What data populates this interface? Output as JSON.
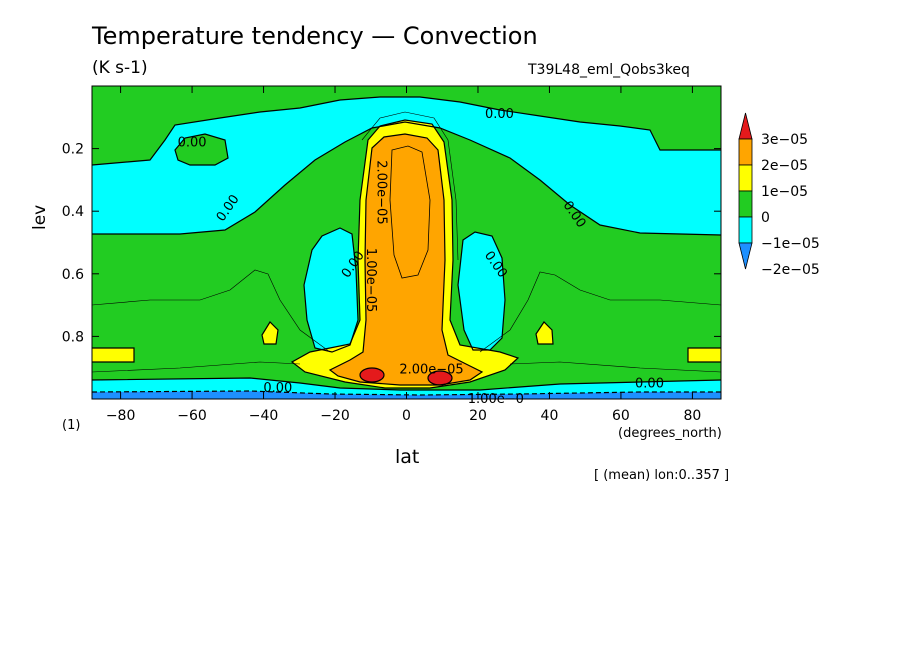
{
  "chart_data": {
    "type": "contour",
    "title": "Temperature tendency — Convection",
    "units": "(K s-1)",
    "run_label": "T39L48_eml_Qobs3keq",
    "xlabel": "lat",
    "ylabel": "lev",
    "x_units": "(degrees_north)",
    "panel_label": "(1)",
    "subtitle": "[ (mean) lon:0..357 ]",
    "xlim": [
      -88,
      88
    ],
    "ylim": [
      1.0,
      0.0
    ],
    "x_ticks": [
      -80,
      -60,
      -40,
      -20,
      0,
      20,
      40,
      60,
      80
    ],
    "x_tick_labels": [
      "−80",
      "−60",
      "−40",
      "−20",
      "0",
      "20",
      "40",
      "60",
      "80"
    ],
    "y_ticks": [
      0.2,
      0.4,
      0.6,
      0.8
    ],
    "y_tick_labels": [
      "0.2",
      "0.4",
      "0.6",
      "0.8"
    ],
    "colorbar": {
      "levels": [
        -2e-05,
        -1e-05,
        0,
        1e-05,
        2e-05,
        3e-05
      ],
      "labels": [
        "3e−05",
        "2e−05",
        "1e−05",
        "0",
        "−1e−05",
        "−2e−05"
      ],
      "colors": [
        "#e41a1c",
        "#ffa500",
        "#ffff00",
        "#22cc22",
        "#00ffff",
        "#1e90ff"
      ]
    },
    "contour_labels": [
      {
        "text": "0.00",
        "lat": 26,
        "lev": 0.09
      },
      {
        "text": "0.00",
        "lat": -60,
        "lev": 0.18
      },
      {
        "text": "0.00",
        "lat": -50,
        "lev": 0.39
      },
      {
        "text": "0.00",
        "lat": 47,
        "lev": 0.41
      },
      {
        "text": "0.00",
        "lat": -15,
        "lev": 0.57
      },
      {
        "text": "0.00",
        "lat": 25,
        "lev": 0.57
      },
      {
        "text": "2.00e−05",
        "lat": -7,
        "lev": 0.34
      },
      {
        "text": "1.00e−05",
        "lat": -10,
        "lev": 0.62
      },
      {
        "text": "2.00e−05",
        "lat": 7,
        "lev": 0.905
      },
      {
        "text": "0.00",
        "lat": -36,
        "lev": 0.965
      },
      {
        "text": "0.00",
        "lat": 68,
        "lev": 0.95
      },
      {
        "text": "1.00e−0",
        "lat": 25,
        "lev": 1.0
      }
    ]
  }
}
